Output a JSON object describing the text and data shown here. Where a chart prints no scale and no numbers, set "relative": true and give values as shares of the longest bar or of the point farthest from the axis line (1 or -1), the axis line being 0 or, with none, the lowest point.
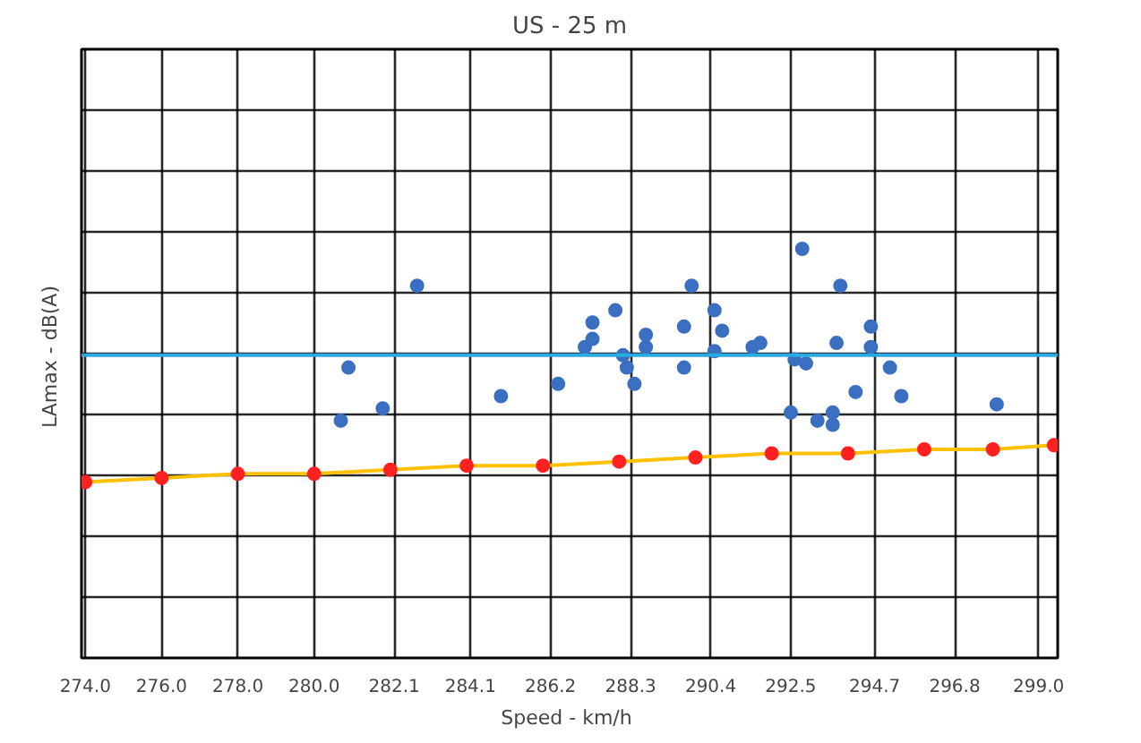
{
  "chart_data": {
    "type": "scatter",
    "title": "US - 25 m",
    "xlabel": "Speed  - km/h",
    "ylabel": "LAmax  - dB(A)",
    "relative": true,
    "grid": true,
    "marker": "circle",
    "xlim": [
      273.9,
      299.5
    ],
    "xticks": [
      {
        "value": 274,
        "label": "274.0"
      },
      {
        "value": 276,
        "label": "276.0"
      },
      {
        "value": 278,
        "label": "278.0"
      },
      {
        "value": 280,
        "label": "280.0"
      },
      282.1,
      284.1,
      286.2,
      288.3,
      290.4,
      292.5,
      294.7,
      296.8,
      {
        "value": 299,
        "label": "299.0"
      }
    ],
    "ref_lines": [
      {
        "axis": "y",
        "value": 0.74,
        "color": "#29abe2"
      }
    ],
    "series": [
      {
        "color": "#3a6fc1",
        "x": [
          280.7,
          280.9,
          281.8,
          282.7,
          284.9,
          286.4,
          287.1,
          287.3,
          287.3,
          287.9,
          288.1,
          288.2,
          288.4,
          288.7,
          288.7,
          289.7,
          289.7,
          289.9,
          290.5,
          290.5,
          290.7,
          291.5,
          291.7,
          292.5,
          292.6,
          292.8,
          292.9,
          293.2,
          293.6,
          293.6,
          293.7,
          293.8,
          294.2,
          294.6,
          294.6,
          295.1,
          295.4,
          297.9
        ],
        "values": [
          0.58,
          0.71,
          0.61,
          0.91,
          0.64,
          0.67,
          0.76,
          0.78,
          0.82,
          0.85,
          0.74,
          0.71,
          0.67,
          0.76,
          0.79,
          0.81,
          0.71,
          0.91,
          0.85,
          0.75,
          0.8,
          0.76,
          0.77,
          0.6,
          0.73,
          1.0,
          0.72,
          0.58,
          0.6,
          0.57,
          0.77,
          0.91,
          0.65,
          0.81,
          0.76,
          0.71,
          0.64,
          0.62
        ]
      },
      {
        "type": "line",
        "color": "#ffc000",
        "marker": "none",
        "x": [
          274,
          276,
          278,
          280,
          282,
          284,
          286,
          288,
          290,
          292,
          294,
          296,
          297.8,
          299.4
        ],
        "values": [
          0.43,
          0.44,
          0.45,
          0.45,
          0.46,
          0.47,
          0.47,
          0.48,
          0.49,
          0.5,
          0.5,
          0.51,
          0.51,
          0.52
        ]
      },
      {
        "color": "#ff2020",
        "x": [
          274,
          276,
          278,
          280,
          282,
          284,
          286,
          288,
          290,
          292,
          294,
          296,
          297.8,
          299.4
        ],
        "values": [
          0.43,
          0.44,
          0.45,
          0.45,
          0.46,
          0.47,
          0.47,
          0.48,
          0.49,
          0.5,
          0.5,
          0.51,
          0.51,
          0.52
        ]
      }
    ]
  }
}
